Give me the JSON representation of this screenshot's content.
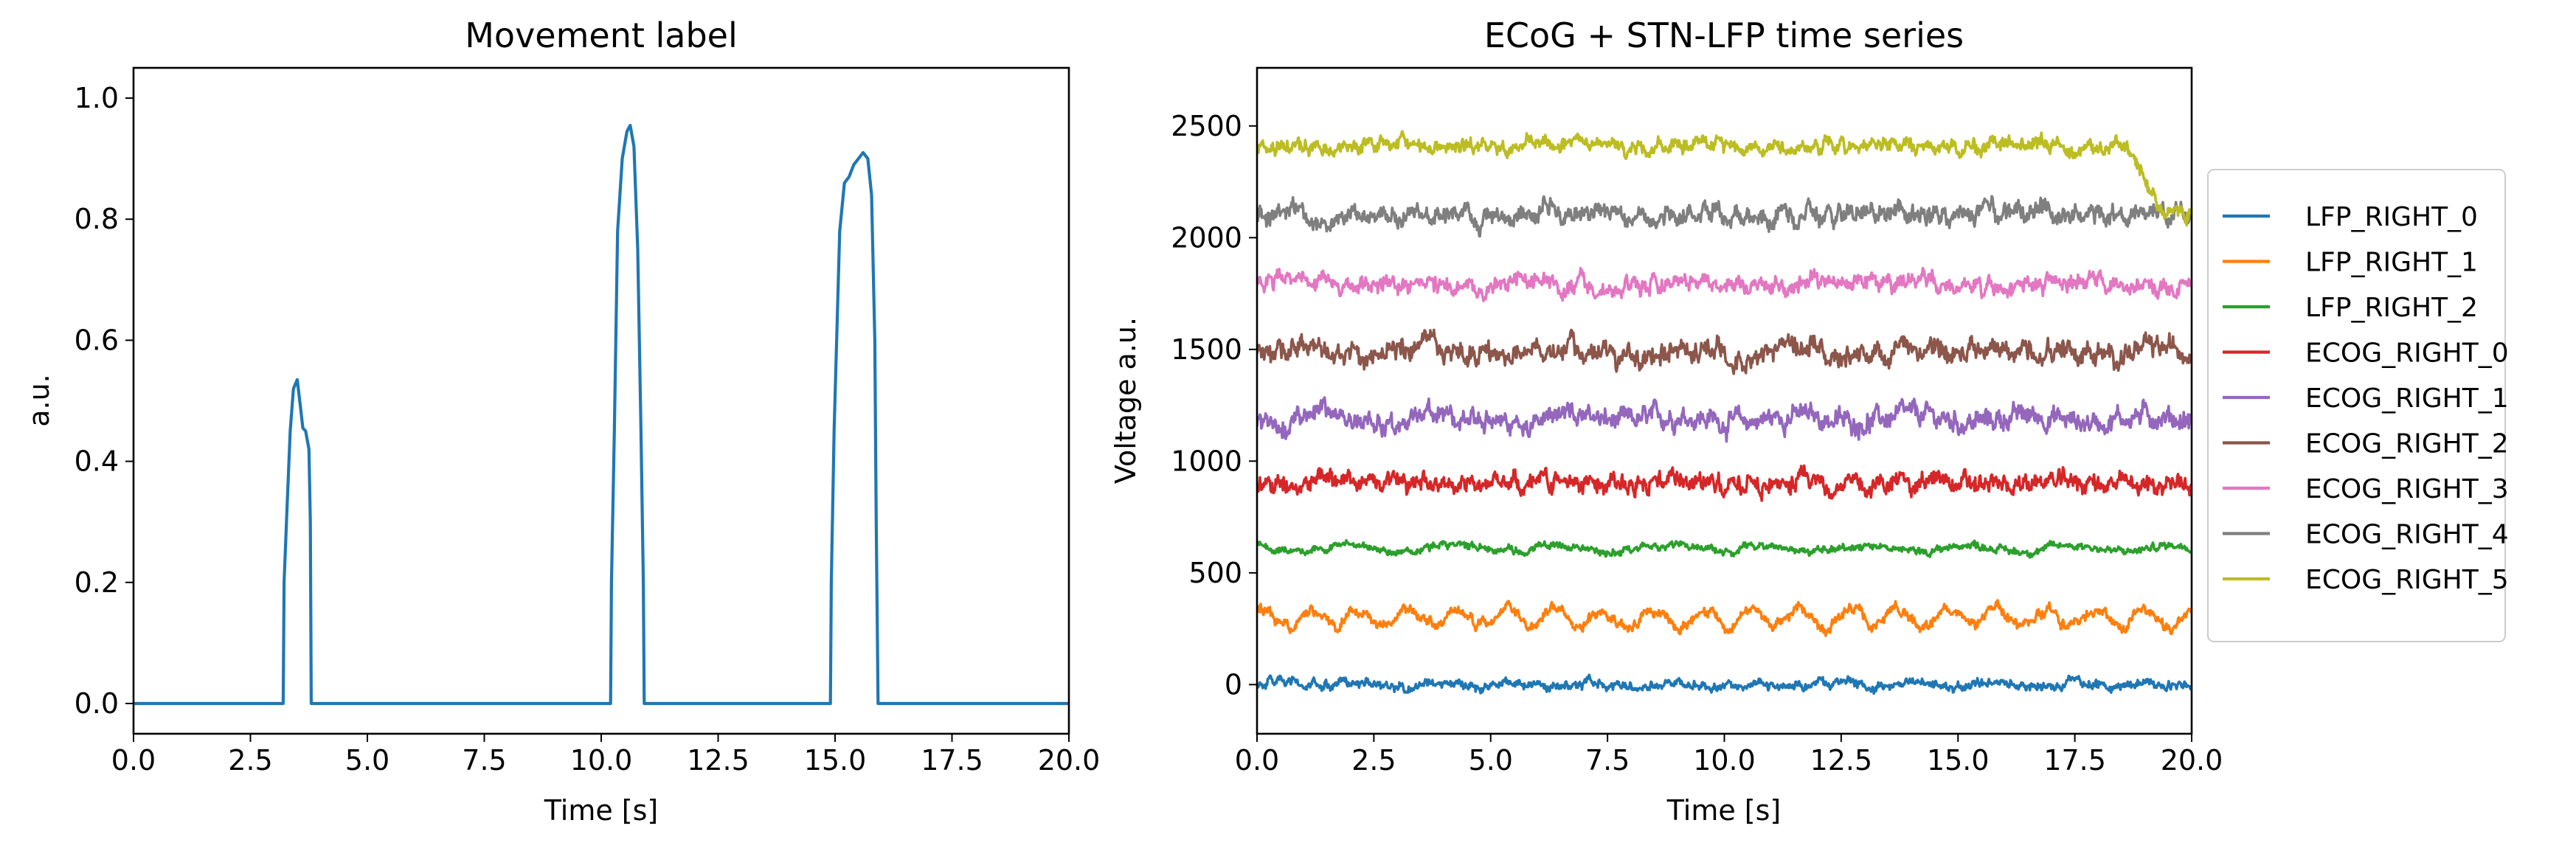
{
  "chart_data": [
    {
      "type": "line",
      "title": "Movement label",
      "xlabel": "Time [s]",
      "ylabel": "a.u.",
      "xlim": [
        0,
        20
      ],
      "ylim": [
        -0.05,
        1.05
      ],
      "xticks": [
        "0.0",
        "2.5",
        "5.0",
        "7.5",
        "10.0",
        "12.5",
        "15.0",
        "17.5",
        "20.0"
      ],
      "yticks": [
        "0.0",
        "0.2",
        "0.4",
        "0.6",
        "0.8",
        "1.0"
      ],
      "grid": false,
      "legend": "none",
      "series": [
        {
          "color": "#1f77b4",
          "x": [
            0,
            3.2,
            3.22,
            3.28,
            3.35,
            3.42,
            3.5,
            3.57,
            3.62,
            3.68,
            3.75,
            3.78,
            3.8,
            10.2,
            10.22,
            10.28,
            10.35,
            10.45,
            10.55,
            10.62,
            10.7,
            10.78,
            10.85,
            10.9,
            10.92,
            14.9,
            14.92,
            14.98,
            15.1,
            15.2,
            15.3,
            15.4,
            15.5,
            15.6,
            15.7,
            15.78,
            15.85,
            15.88,
            15.92,
            20
          ],
          "y": [
            0,
            0,
            0.2,
            0.32,
            0.45,
            0.52,
            0.535,
            0.49,
            0.455,
            0.45,
            0.42,
            0.3,
            0,
            0,
            0.2,
            0.45,
            0.78,
            0.9,
            0.945,
            0.955,
            0.92,
            0.75,
            0.45,
            0.2,
            0,
            0,
            0.2,
            0.45,
            0.78,
            0.86,
            0.87,
            0.89,
            0.9,
            0.91,
            0.9,
            0.84,
            0.6,
            0.3,
            0,
            0
          ]
        }
      ]
    },
    {
      "type": "line",
      "title": "ECoG + STN-LFP time series",
      "xlabel": "Time [s]",
      "ylabel": "Voltage a.u.",
      "xlim": [
        0,
        20
      ],
      "ylim": [
        -220,
        2760
      ],
      "xticks": [
        "0.0",
        "2.5",
        "5.0",
        "7.5",
        "10.0",
        "12.5",
        "15.0",
        "17.5",
        "20.0"
      ],
      "yticks": [
        "0",
        "500",
        "1000",
        "1500",
        "2000",
        "2500"
      ],
      "grid": false,
      "legend": "outside-right",
      "series": [
        {
          "name": "LFP_RIGHT_0",
          "color": "#1f77b4",
          "offset": 0,
          "noise": 24,
          "wave_amp": 10,
          "wave_period": 1.7
        },
        {
          "name": "LFP_RIGHT_1",
          "color": "#ff7f0e",
          "offset": 300,
          "noise": 28,
          "wave_amp": 40,
          "wave_period": 1.05
        },
        {
          "name": "LFP_RIGHT_2",
          "color": "#2ca02c",
          "offset": 610,
          "noise": 20,
          "wave_amp": 15,
          "wave_period": 2.2
        },
        {
          "name": "ECOG_RIGHT_0",
          "color": "#d62728",
          "offset": 900,
          "noise": 50,
          "wave_amp": 10,
          "wave_period": 3.0
        },
        {
          "name": "ECOG_RIGHT_1",
          "color": "#9467bd",
          "offset": 1190,
          "noise": 55,
          "wave_amp": 15,
          "wave_period": 2.5
        },
        {
          "name": "ECOG_RIGHT_2",
          "color": "#8c564b",
          "offset": 1490,
          "noise": 55,
          "wave_amp": 15,
          "wave_period": 2.6
        },
        {
          "name": "ECOG_RIGHT_3",
          "color": "#e377c2",
          "offset": 1790,
          "noise": 45,
          "wave_amp": 10,
          "wave_period": 2.8
        },
        {
          "name": "ECOG_RIGHT_4",
          "color": "#7f7f7f",
          "offset": 2100,
          "noise": 50,
          "wave_amp": 10,
          "wave_period": 3.1
        },
        {
          "name": "ECOG_RIGHT_5",
          "color": "#bcbd22",
          "offset": 2410,
          "noise": 38,
          "wave_amp": 8,
          "wave_period": 3.3,
          "end_drop": 300,
          "end_drop_start": 18.6
        }
      ]
    }
  ]
}
